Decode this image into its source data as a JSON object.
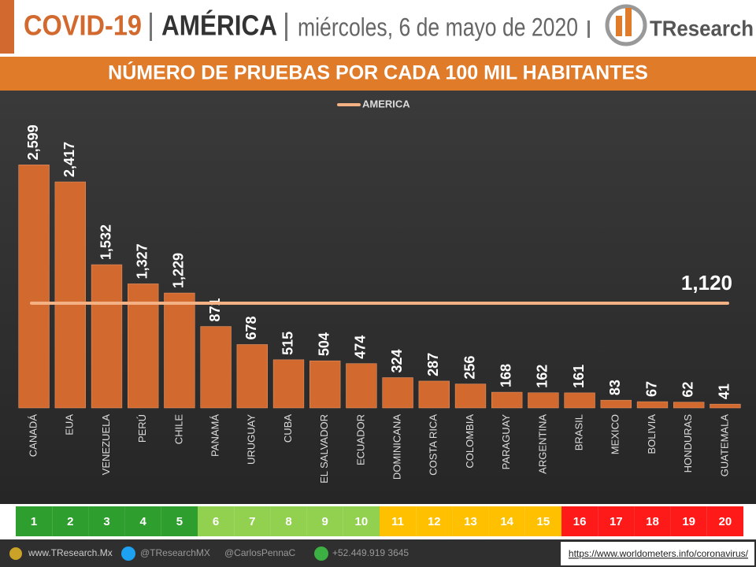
{
  "header": {
    "title": "COVID-19",
    "region": "AMÉRICA",
    "date": "miércoles, 6 de mayo de 2020",
    "logo": "TResearch"
  },
  "chart_data": {
    "type": "bar",
    "title": "NÚMERO DE PRUEBAS POR CADA 100 MIL HABITANTES",
    "categories": [
      "CANADÁ",
      "EUA",
      "VENEZUELA",
      "PERÚ",
      "CHILE",
      "PANAMÁ",
      "URUGUAY",
      "CUBA",
      "EL SALVADOR",
      "ECUADOR",
      "DOMINICANA",
      "COSTA RICA",
      "COLOMBIA",
      "PARAGUAY",
      "ARGENTINA",
      "BRASIL",
      "MEXICO",
      "BOLIVIA",
      "HONDURAS",
      "GUATEMALA"
    ],
    "values": [
      2599,
      2417,
      1532,
      1327,
      1229,
      871,
      678,
      515,
      504,
      474,
      324,
      287,
      256,
      168,
      162,
      161,
      83,
      67,
      62,
      41
    ],
    "value_labels": [
      "2,599",
      "2,417",
      "1,532",
      "1,327",
      "1,229",
      "871",
      "678",
      "515",
      "504",
      "474",
      "324",
      "287",
      "256",
      "168",
      "162",
      "161",
      "83",
      "67",
      "62",
      "41"
    ],
    "color": "#d2692e",
    "ylim": [
      0,
      3200
    ],
    "reference_line": {
      "name": "AMERICA",
      "value": 1120,
      "value_label": "1,120",
      "color": "#f4b183"
    },
    "ranks": [
      1,
      2,
      3,
      4,
      5,
      6,
      7,
      8,
      9,
      10,
      11,
      12,
      13,
      14,
      15,
      16,
      17,
      18,
      19,
      20
    ],
    "rank_colors": [
      "#2e9e2e",
      "#2e9e2e",
      "#2e9e2e",
      "#2e9e2e",
      "#2e9e2e",
      "#92d050",
      "#92d050",
      "#92d050",
      "#92d050",
      "#92d050",
      "#ffc000",
      "#ffc000",
      "#ffc000",
      "#ffc000",
      "#ffc000",
      "#ff1a1a",
      "#ff1a1a",
      "#ff1a1a",
      "#ff1a1a",
      "#ff1a1a"
    ]
  },
  "footer": {
    "site": "www.TResearch.Mx",
    "twitter": "@TResearchMX",
    "twitter2": "@CarlosPennaC",
    "phone": "+52.449.919 3645",
    "source": "https://www.worldometers.info/coronavirus/"
  }
}
